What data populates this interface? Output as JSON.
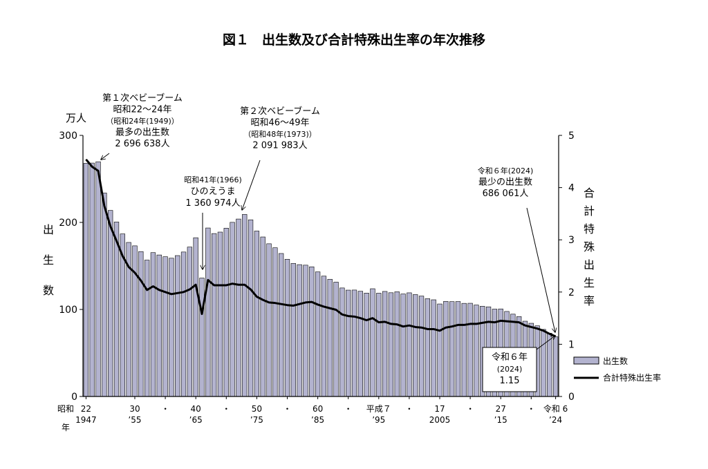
{
  "chart_data": {
    "type": "bar",
    "title": "図１　出生数及び合計特殊出生率の年次推移",
    "y_unit": "万人",
    "ylabel_left": [
      "出",
      "生",
      "数"
    ],
    "ylabel_right": [
      "合",
      "計",
      "特",
      "殊",
      "出",
      "生",
      "率"
    ],
    "ylim_left": [
      0,
      300
    ],
    "ylim_right": [
      0,
      5
    ],
    "yticks_left": [
      "0",
      "100",
      "200",
      "300"
    ],
    "yticks_right": [
      "0",
      "1",
      "2",
      "3",
      "4",
      "5"
    ],
    "x_year_range": [
      1947,
      2024
    ],
    "x_axis_corner": [
      "昭和",
      "年"
    ],
    "x_tick_labels": [
      {
        "year": 1947,
        "era": "22",
        "western": "1947"
      },
      {
        "year": 1955,
        "era": "30",
        "western": "'55"
      },
      {
        "year": 1960,
        "era": "・",
        "western": ""
      },
      {
        "year": 1965,
        "era": "40",
        "western": "'65"
      },
      {
        "year": 1970,
        "era": "・",
        "western": ""
      },
      {
        "year": 1975,
        "era": "50",
        "western": "'75"
      },
      {
        "year": 1980,
        "era": "・",
        "western": ""
      },
      {
        "year": 1985,
        "era": "60",
        "western": "'85"
      },
      {
        "year": 1990,
        "era": "・",
        "western": ""
      },
      {
        "year": 1995,
        "era": "平成７",
        "western": "'95"
      },
      {
        "year": 2000,
        "era": "・",
        "western": ""
      },
      {
        "year": 2005,
        "era": "17",
        "western": "2005"
      },
      {
        "year": 2010,
        "era": "・",
        "western": ""
      },
      {
        "year": 2015,
        "era": "27",
        "western": "'15"
      },
      {
        "year": 2020,
        "era": "・",
        "western": ""
      },
      {
        "year": 2024,
        "era": "令和 6",
        "western": "'24"
      }
    ],
    "years": [
      1947,
      1948,
      1949,
      1950,
      1951,
      1952,
      1953,
      1954,
      1955,
      1956,
      1957,
      1958,
      1959,
      1960,
      1961,
      1962,
      1963,
      1964,
      1965,
      1966,
      1967,
      1968,
      1969,
      1970,
      1971,
      1972,
      1973,
      1974,
      1975,
      1976,
      1977,
      1978,
      1979,
      1980,
      1981,
      1982,
      1983,
      1984,
      1985,
      1986,
      1987,
      1988,
      1989,
      1990,
      1991,
      1992,
      1993,
      1994,
      1995,
      1996,
      1997,
      1998,
      1999,
      2000,
      2001,
      2002,
      2003,
      2004,
      2005,
      2006,
      2007,
      2008,
      2009,
      2010,
      2011,
      2012,
      2013,
      2014,
      2015,
      2016,
      2017,
      2018,
      2019,
      2020,
      2021,
      2022,
      2023,
      2024
    ],
    "series": [
      {
        "name": "出生数",
        "axis": "left",
        "type": "bar",
        "values": [
          267.9,
          268.2,
          269.7,
          233.8,
          213.8,
          200.5,
          186.8,
          177.0,
          173.1,
          166.5,
          156.7,
          165.3,
          162.6,
          160.6,
          158.9,
          161.9,
          166.0,
          171.7,
          182.4,
          136.1,
          193.6,
          187.2,
          188.9,
          193.4,
          200.1,
          203.9,
          209.2,
          203.0,
          190.1,
          183.3,
          175.5,
          170.9,
          164.3,
          157.7,
          152.9,
          151.5,
          150.9,
          149.0,
          143.2,
          138.3,
          134.7,
          131.4,
          124.7,
          122.2,
          122.3,
          120.9,
          118.8,
          123.8,
          118.7,
          120.7,
          119.2,
          120.3,
          117.8,
          119.1,
          117.1,
          115.4,
          112.4,
          111.1,
          106.3,
          109.3,
          109.0,
          109.1,
          107.0,
          107.1,
          105.1,
          103.7,
          103.0,
          100.4,
          100.6,
          97.7,
          94.6,
          91.8,
          86.5,
          84.1,
          81.2,
          77.1,
          72.7,
          68.6
        ]
      },
      {
        "name": "合計特殊出生率",
        "axis": "right",
        "type": "line",
        "values": [
          4.54,
          4.4,
          4.32,
          3.65,
          3.26,
          2.98,
          2.69,
          2.48,
          2.37,
          2.22,
          2.04,
          2.11,
          2.04,
          2.0,
          1.96,
          1.98,
          2.0,
          2.05,
          2.14,
          1.58,
          2.23,
          2.13,
          2.13,
          2.13,
          2.16,
          2.14,
          2.14,
          2.05,
          1.91,
          1.85,
          1.8,
          1.79,
          1.77,
          1.75,
          1.74,
          1.77,
          1.8,
          1.81,
          1.76,
          1.72,
          1.69,
          1.66,
          1.57,
          1.54,
          1.53,
          1.5,
          1.46,
          1.5,
          1.42,
          1.43,
          1.39,
          1.38,
          1.34,
          1.36,
          1.33,
          1.32,
          1.29,
          1.29,
          1.26,
          1.32,
          1.34,
          1.37,
          1.37,
          1.39,
          1.39,
          1.41,
          1.43,
          1.42,
          1.45,
          1.44,
          1.43,
          1.42,
          1.36,
          1.33,
          1.3,
          1.26,
          1.2,
          1.15
        ]
      }
    ],
    "annotations": [
      {
        "lines": [
          "第１次ベビーブーム",
          "昭和22～24年",
          "（昭和24年(1949)）",
          "最多の出生数",
          "2 696 638人"
        ]
      },
      {
        "lines": [
          "第２次ベビーブーム",
          "昭和46～49年",
          "（昭和48年(1973)）",
          "2 091 983人"
        ]
      },
      {
        "lines": [
          "昭和41年(1966)",
          "ひのえうま",
          "1 360 974人"
        ]
      },
      {
        "lines": [
          "令和６年(2024)",
          "最少の出生数",
          "686 061人"
        ]
      },
      {
        "lines": [
          "令和６年",
          "(2024)",
          "1.15"
        ]
      }
    ],
    "legend_position": "right",
    "colors": {
      "bar_fill": "#b3b3cf",
      "bar_stroke": "#000000",
      "line": "#000000"
    }
  }
}
